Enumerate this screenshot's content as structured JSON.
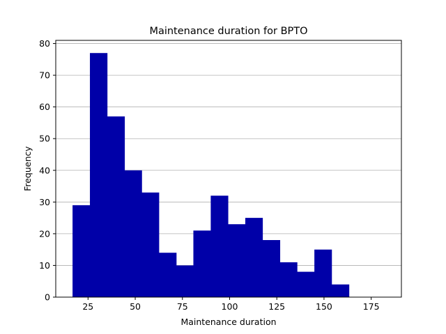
{
  "chart_data": {
    "type": "bar",
    "title": "Maintenance duration for BPTO",
    "xlabel": "Maintenance duration",
    "ylabel": "Frequency",
    "xlim": [
      7.9,
      191.0
    ],
    "ylim": [
      0,
      81
    ],
    "xticks": [
      25,
      50,
      75,
      100,
      125,
      150,
      175
    ],
    "yticks": [
      0,
      10,
      20,
      30,
      40,
      50,
      60,
      70,
      80
    ],
    "grid": "y",
    "bar_color": "#0000A8",
    "bins": [
      {
        "x0": 16.8,
        "x1": 26.0,
        "value": 29
      },
      {
        "x0": 26.0,
        "x1": 35.1,
        "value": 77
      },
      {
        "x0": 35.1,
        "x1": 44.3,
        "value": 57
      },
      {
        "x0": 44.3,
        "x1": 53.4,
        "value": 40
      },
      {
        "x0": 53.4,
        "x1": 62.5,
        "value": 33
      },
      {
        "x0": 62.5,
        "x1": 71.7,
        "value": 14
      },
      {
        "x0": 71.7,
        "x1": 80.8,
        "value": 10
      },
      {
        "x0": 80.8,
        "x1": 90.0,
        "value": 21
      },
      {
        "x0": 90.0,
        "x1": 99.1,
        "value": 32
      },
      {
        "x0": 99.1,
        "x1": 108.3,
        "value": 23
      },
      {
        "x0": 108.3,
        "x1": 117.4,
        "value": 25
      },
      {
        "x0": 117.4,
        "x1": 126.6,
        "value": 18
      },
      {
        "x0": 126.6,
        "x1": 135.7,
        "value": 11
      },
      {
        "x0": 135.7,
        "x1": 144.9,
        "value": 8
      },
      {
        "x0": 144.9,
        "x1": 154.0,
        "value": 15
      },
      {
        "x0": 154.0,
        "x1": 163.2,
        "value": 4
      }
    ]
  }
}
